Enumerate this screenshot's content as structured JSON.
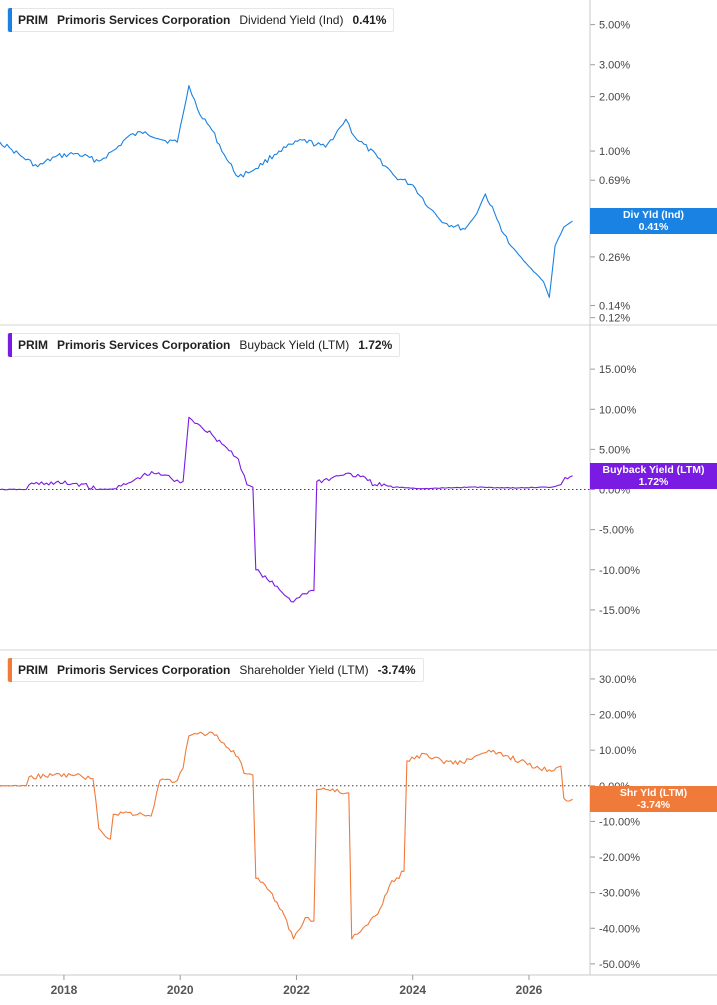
{
  "chart_data": [
    {
      "type": "line",
      "ticker": "PRIM",
      "company": "Primoris Services Corporation",
      "metric": "Dividend Yield (Ind)",
      "latest_label": "0.41%",
      "flag_name": "Div Yld (Ind)",
      "flag_value": "0.41%",
      "color": "#1a82e2",
      "scale": "log",
      "ylim": [
        0.115,
        6.5
      ],
      "y_ticks": [
        {
          "v": 5.0,
          "label": "5.00%"
        },
        {
          "v": 3.0,
          "label": "3.00%"
        },
        {
          "v": 2.0,
          "label": "2.00%"
        },
        {
          "v": 1.0,
          "label": "1.00%"
        },
        {
          "v": 0.69,
          "label": "0.69%"
        },
        {
          "v": 0.37,
          "label": "0.37%"
        },
        {
          "v": 0.26,
          "label": "0.26%"
        },
        {
          "v": 0.14,
          "label": "0.14%"
        },
        {
          "v": 0.12,
          "label": "0.12%"
        }
      ],
      "zero_line": false,
      "series": [
        {
          "x": 2016.9,
          "y": 1.12
        },
        {
          "x": 2017.1,
          "y": 1.02
        },
        {
          "x": 2017.3,
          "y": 0.92
        },
        {
          "x": 2017.55,
          "y": 0.82
        },
        {
          "x": 2017.85,
          "y": 0.93
        },
        {
          "x": 2018.2,
          "y": 0.97
        },
        {
          "x": 2018.6,
          "y": 0.88
        },
        {
          "x": 2018.9,
          "y": 1.03
        },
        {
          "x": 2019.1,
          "y": 1.2
        },
        {
          "x": 2019.4,
          "y": 1.28
        },
        {
          "x": 2019.7,
          "y": 1.15
        },
        {
          "x": 2019.95,
          "y": 1.12
        },
        {
          "x": 2020.05,
          "y": 1.6
        },
        {
          "x": 2020.15,
          "y": 2.3
        },
        {
          "x": 2020.3,
          "y": 1.7
        },
        {
          "x": 2020.55,
          "y": 1.3
        },
        {
          "x": 2020.8,
          "y": 0.9
        },
        {
          "x": 2021.0,
          "y": 0.72
        },
        {
          "x": 2021.3,
          "y": 0.8
        },
        {
          "x": 2021.7,
          "y": 1.0
        },
        {
          "x": 2022.1,
          "y": 1.15
        },
        {
          "x": 2022.5,
          "y": 1.05
        },
        {
          "x": 2022.75,
          "y": 1.35
        },
        {
          "x": 2022.85,
          "y": 1.5
        },
        {
          "x": 2023.0,
          "y": 1.2
        },
        {
          "x": 2023.4,
          "y": 0.92
        },
        {
          "x": 2023.7,
          "y": 0.72
        },
        {
          "x": 2024.0,
          "y": 0.65
        },
        {
          "x": 2024.3,
          "y": 0.48
        },
        {
          "x": 2024.55,
          "y": 0.4
        },
        {
          "x": 2024.9,
          "y": 0.37
        },
        {
          "x": 2025.1,
          "y": 0.45
        },
        {
          "x": 2025.25,
          "y": 0.58
        },
        {
          "x": 2025.45,
          "y": 0.42
        },
        {
          "x": 2025.65,
          "y": 0.31
        },
        {
          "x": 2025.95,
          "y": 0.24
        },
        {
          "x": 2026.25,
          "y": 0.19
        },
        {
          "x": 2026.35,
          "y": 0.155
        },
        {
          "x": 2026.45,
          "y": 0.3
        },
        {
          "x": 2026.6,
          "y": 0.38
        },
        {
          "x": 2026.75,
          "y": 0.41
        }
      ]
    },
    {
      "type": "line",
      "ticker": "PRIM",
      "company": "Primoris Services Corporation",
      "metric": "Buyback Yield (LTM)",
      "latest_label": "1.72%",
      "flag_name": "Buyback Yield (LTM)",
      "flag_value": "1.72%",
      "color": "#7a1be3",
      "scale": "linear",
      "ylim": [
        -19.5,
        20.0
      ],
      "y_ticks": [
        {
          "v": 15,
          "label": "15.00%"
        },
        {
          "v": 10,
          "label": "10.00%"
        },
        {
          "v": 5,
          "label": "5.00%"
        },
        {
          "v": 0,
          "label": "0.00%"
        },
        {
          "v": -5,
          "label": "-5.00%"
        },
        {
          "v": -10,
          "label": "-10.00%"
        },
        {
          "v": -15,
          "label": "-15.00%"
        }
      ],
      "zero_line": true,
      "series": [
        {
          "x": 2016.9,
          "y": 0.0
        },
        {
          "x": 2017.35,
          "y": 0.0
        },
        {
          "x": 2017.4,
          "y": 0.6
        },
        {
          "x": 2017.7,
          "y": 0.8
        },
        {
          "x": 2018.3,
          "y": 0.7
        },
        {
          "x": 2018.55,
          "y": 0.0
        },
        {
          "x": 2018.9,
          "y": 0.1
        },
        {
          "x": 2019.15,
          "y": 0.9
        },
        {
          "x": 2019.35,
          "y": 1.7
        },
        {
          "x": 2019.55,
          "y": 2.0
        },
        {
          "x": 2019.75,
          "y": 1.8
        },
        {
          "x": 2019.9,
          "y": 1.0
        },
        {
          "x": 2020.05,
          "y": 1.0
        },
        {
          "x": 2020.1,
          "y": 5.0
        },
        {
          "x": 2020.15,
          "y": 9.0
        },
        {
          "x": 2020.3,
          "y": 8.2
        },
        {
          "x": 2020.55,
          "y": 6.8
        },
        {
          "x": 2020.8,
          "y": 5.2
        },
        {
          "x": 2021.0,
          "y": 3.8
        },
        {
          "x": 2021.15,
          "y": 0.6
        },
        {
          "x": 2021.25,
          "y": 0.3
        },
        {
          "x": 2021.3,
          "y": -10.0
        },
        {
          "x": 2021.5,
          "y": -11.2
        },
        {
          "x": 2021.75,
          "y": -12.8
        },
        {
          "x": 2021.95,
          "y": -14.0
        },
        {
          "x": 2022.1,
          "y": -13.0
        },
        {
          "x": 2022.3,
          "y": -12.6
        },
        {
          "x": 2022.35,
          "y": 1.0
        },
        {
          "x": 2022.6,
          "y": 1.4
        },
        {
          "x": 2022.85,
          "y": 2.0
        },
        {
          "x": 2023.1,
          "y": 1.6
        },
        {
          "x": 2023.35,
          "y": 0.6
        },
        {
          "x": 2023.7,
          "y": 0.3
        },
        {
          "x": 2024.2,
          "y": 0.1
        },
        {
          "x": 2025.0,
          "y": 0.3
        },
        {
          "x": 2025.8,
          "y": 0.2
        },
        {
          "x": 2026.4,
          "y": 0.3
        },
        {
          "x": 2026.55,
          "y": 0.6
        },
        {
          "x": 2026.62,
          "y": 1.5
        },
        {
          "x": 2026.75,
          "y": 1.72
        }
      ]
    },
    {
      "type": "line",
      "ticker": "PRIM",
      "company": "Primoris Services Corporation",
      "metric": "Shareholder Yield (LTM)",
      "latest_label": "-3.74%",
      "flag_name": "Shr Yld (LTM)",
      "flag_value": "-3.74%",
      "color": "#f07a3a",
      "scale": "linear",
      "ylim": [
        -52.0,
        37.0
      ],
      "y_ticks": [
        {
          "v": 30,
          "label": "30.00%"
        },
        {
          "v": 20,
          "label": "20.00%"
        },
        {
          "v": 10,
          "label": "10.00%"
        },
        {
          "v": 0,
          "label": "0.00%"
        },
        {
          "v": -10,
          "label": "-10.00%"
        },
        {
          "v": -20,
          "label": "-20.00%"
        },
        {
          "v": -30,
          "label": "-30.00%"
        },
        {
          "v": -40,
          "label": "-40.00%"
        },
        {
          "v": -50,
          "label": "-50.00%"
        }
      ],
      "zero_line": true,
      "series": [
        {
          "x": 2016.9,
          "y": 0.0
        },
        {
          "x": 2017.35,
          "y": 0.0
        },
        {
          "x": 2017.4,
          "y": 2.5
        },
        {
          "x": 2017.8,
          "y": 2.9
        },
        {
          "x": 2018.2,
          "y": 3.0
        },
        {
          "x": 2018.5,
          "y": 2.0
        },
        {
          "x": 2018.6,
          "y": -12.0
        },
        {
          "x": 2018.8,
          "y": -15.0
        },
        {
          "x": 2018.85,
          "y": -8.0
        },
        {
          "x": 2019.1,
          "y": -7.5
        },
        {
          "x": 2019.35,
          "y": -8.0
        },
        {
          "x": 2019.5,
          "y": -8.5
        },
        {
          "x": 2019.65,
          "y": 1.5
        },
        {
          "x": 2019.95,
          "y": 1.5
        },
        {
          "x": 2020.05,
          "y": 5.0
        },
        {
          "x": 2020.15,
          "y": 14.0
        },
        {
          "x": 2020.3,
          "y": 14.5
        },
        {
          "x": 2020.55,
          "y": 15.0
        },
        {
          "x": 2020.75,
          "y": 12.0
        },
        {
          "x": 2021.0,
          "y": 8.0
        },
        {
          "x": 2021.1,
          "y": 3.5
        },
        {
          "x": 2021.25,
          "y": 3.0
        },
        {
          "x": 2021.3,
          "y": -26.0
        },
        {
          "x": 2021.5,
          "y": -29.0
        },
        {
          "x": 2021.75,
          "y": -35.0
        },
        {
          "x": 2021.95,
          "y": -43.0
        },
        {
          "x": 2022.15,
          "y": -37.0
        },
        {
          "x": 2022.3,
          "y": -38.0
        },
        {
          "x": 2022.35,
          "y": -1.0
        },
        {
          "x": 2022.7,
          "y": -1.0
        },
        {
          "x": 2022.75,
          "y": -2.0
        },
        {
          "x": 2022.9,
          "y": -2.0
        },
        {
          "x": 2022.95,
          "y": -43.0
        },
        {
          "x": 2023.1,
          "y": -41.0
        },
        {
          "x": 2023.4,
          "y": -36.0
        },
        {
          "x": 2023.6,
          "y": -28.0
        },
        {
          "x": 2023.85,
          "y": -24.0
        },
        {
          "x": 2023.9,
          "y": 7.0
        },
        {
          "x": 2024.2,
          "y": 9.0
        },
        {
          "x": 2024.5,
          "y": 7.0
        },
        {
          "x": 2024.85,
          "y": 6.5
        },
        {
          "x": 2025.1,
          "y": 8.5
        },
        {
          "x": 2025.35,
          "y": 9.5
        },
        {
          "x": 2025.6,
          "y": 8.5
        },
        {
          "x": 2025.85,
          "y": 7.0
        },
        {
          "x": 2026.1,
          "y": 5.0
        },
        {
          "x": 2026.35,
          "y": 4.5
        },
        {
          "x": 2026.55,
          "y": 5.5
        },
        {
          "x": 2026.6,
          "y": -3.5
        },
        {
          "x": 2026.75,
          "y": -3.74
        }
      ]
    }
  ],
  "x_axis": {
    "ticks": [
      {
        "v": 2018,
        "label": "2018"
      },
      {
        "v": 2020,
        "label": "2020"
      },
      {
        "v": 2022,
        "label": "2022"
      },
      {
        "v": 2024,
        "label": "2024"
      },
      {
        "v": 2026,
        "label": "2026"
      }
    ]
  }
}
